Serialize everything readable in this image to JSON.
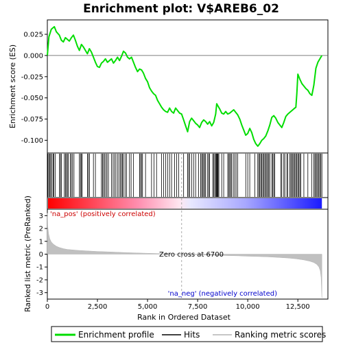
{
  "chart_data": {
    "type": "line",
    "title": "Enrichment plot: V$AREB6_02",
    "xlabel": "Rank in Ordered Dataset",
    "ylabel_top": "Enrichment score (ES)",
    "ylabel_bottom": "Ranked list metric (PreRanked)",
    "xlim": [
      0,
      14000
    ],
    "es_ylim": [
      -0.115,
      0.042
    ],
    "metric_ylim": [
      -3.5,
      3.5
    ],
    "x_ticks": [
      0,
      2500,
      5000,
      7500,
      10000,
      12500
    ],
    "x_tick_labels": [
      "0",
      "2,500",
      "5,000",
      "7,500",
      "10,000",
      "12,500"
    ],
    "es_ticks": [
      0.025,
      0.0,
      -0.025,
      -0.05,
      -0.075,
      -0.1
    ],
    "es_tick_labels": [
      "0.025",
      "0.000",
      "-0.025",
      "-0.050",
      "-0.075",
      "-0.100"
    ],
    "metric_ticks": [
      3,
      2,
      1,
      0,
      -1,
      -2,
      -3
    ],
    "metric_tick_labels": [
      "3",
      "2",
      "1",
      "0",
      "-1",
      "-2",
      "-3"
    ],
    "enrichment_profile": {
      "x": [
        0,
        80,
        200,
        350,
        450,
        600,
        700,
        800,
        900,
        1000,
        1100,
        1200,
        1300,
        1400,
        1500,
        1600,
        1700,
        1800,
        1900,
        2000,
        2100,
        2200,
        2300,
        2400,
        2500,
        2600,
        2700,
        2800,
        2900,
        3000,
        3100,
        3200,
        3300,
        3400,
        3500,
        3600,
        3700,
        3800,
        3900,
        4000,
        4100,
        4200,
        4300,
        4400,
        4500,
        4600,
        4700,
        4800,
        4900,
        5000,
        5100,
        5200,
        5300,
        5400,
        5500,
        5600,
        5700,
        5800,
        5900,
        6000,
        6100,
        6200,
        6300,
        6400,
        6500,
        6600,
        6700,
        6800,
        6900,
        7000,
        7100,
        7200,
        7300,
        7400,
        7500,
        7600,
        7700,
        7800,
        7900,
        8000,
        8100,
        8200,
        8300,
        8400,
        8450,
        8500,
        8600,
        8700,
        8800,
        8900,
        9000,
        9100,
        9200,
        9300,
        9400,
        9500,
        9600,
        9700,
        9800,
        9900,
        10000,
        10100,
        10200,
        10300,
        10400,
        10500,
        10600,
        10700,
        10800,
        10900,
        11000,
        11100,
        11200,
        11300,
        11400,
        11500,
        11600,
        11700,
        11800,
        11900,
        12000,
        12100,
        12200,
        12300,
        12400,
        12450,
        12500,
        12600,
        12700,
        12800,
        12900,
        13000,
        13100,
        13200,
        13300,
        13400,
        13500,
        13600,
        13700
      ],
      "y": [
        0.0,
        0.022,
        0.031,
        0.034,
        0.028,
        0.024,
        0.018,
        0.016,
        0.021,
        0.019,
        0.017,
        0.021,
        0.024,
        0.018,
        0.011,
        0.006,
        0.013,
        0.01,
        0.006,
        0.002,
        0.008,
        0.004,
        -0.002,
        -0.008,
        -0.013,
        -0.014,
        -0.009,
        -0.007,
        -0.004,
        -0.008,
        -0.006,
        -0.004,
        -0.009,
        -0.006,
        -0.002,
        -0.006,
        -0.001,
        0.005,
        0.003,
        -0.002,
        -0.004,
        -0.002,
        -0.008,
        -0.014,
        -0.019,
        -0.016,
        -0.017,
        -0.021,
        -0.027,
        -0.031,
        -0.038,
        -0.042,
        -0.045,
        -0.047,
        -0.053,
        -0.057,
        -0.061,
        -0.064,
        -0.066,
        -0.067,
        -0.062,
        -0.066,
        -0.068,
        -0.062,
        -0.065,
        -0.068,
        -0.069,
        -0.076,
        -0.083,
        -0.09,
        -0.078,
        -0.074,
        -0.077,
        -0.08,
        -0.082,
        -0.085,
        -0.079,
        -0.076,
        -0.078,
        -0.081,
        -0.078,
        -0.083,
        -0.079,
        -0.069,
        -0.057,
        -0.059,
        -0.063,
        -0.068,
        -0.069,
        -0.066,
        -0.069,
        -0.068,
        -0.066,
        -0.064,
        -0.067,
        -0.07,
        -0.075,
        -0.082,
        -0.088,
        -0.094,
        -0.092,
        -0.086,
        -0.091,
        -0.099,
        -0.104,
        -0.107,
        -0.104,
        -0.1,
        -0.098,
        -0.095,
        -0.089,
        -0.082,
        -0.073,
        -0.071,
        -0.074,
        -0.079,
        -0.082,
        -0.085,
        -0.079,
        -0.072,
        -0.069,
        -0.067,
        -0.065,
        -0.063,
        -0.061,
        -0.045,
        -0.022,
        -0.028,
        -0.033,
        -0.036,
        -0.039,
        -0.041,
        -0.045,
        -0.047,
        -0.035,
        -0.015,
        -0.008,
        -0.004,
        0.0
      ]
    },
    "hits": [
      30,
      80,
      130,
      170,
      230,
      290,
      330,
      400,
      610,
      650,
      700,
      850,
      900,
      950,
      1000,
      1050,
      1150,
      1200,
      1260,
      1330,
      1600,
      1650,
      1700,
      1740,
      2000,
      2050,
      2100,
      2300,
      2400,
      2700,
      2750,
      2800,
      2860,
      2920,
      2980,
      3050,
      3200,
      3280,
      3350,
      3420,
      3500,
      3580,
      3650,
      3700,
      3750,
      3800,
      3880,
      3950,
      4100,
      4180,
      4300,
      4600,
      4650,
      4700,
      4750,
      4900,
      5200,
      5320,
      5450,
      5700,
      5800,
      5900,
      6000,
      6100,
      6200,
      6350,
      6450,
      6550,
      6800,
      7000,
      7050,
      7100,
      7200,
      7300,
      7400,
      7550,
      7650,
      7700,
      7750,
      7800,
      7850,
      7900,
      8000,
      8050,
      8100,
      8250,
      8300,
      8350,
      8400,
      8430,
      8460,
      8490,
      8520,
      8560,
      8700,
      8800,
      9000,
      9050,
      9100,
      9150,
      9200,
      9280,
      9350,
      9420,
      9500,
      9900,
      10000,
      10100,
      10350,
      10500,
      10550,
      10600,
      10650,
      10700,
      10750,
      10800,
      10850,
      10900,
      10950,
      11000,
      11050,
      11100,
      11200,
      11250,
      11300,
      11350,
      11650,
      11700,
      11800,
      11850,
      11950,
      12000,
      12100,
      12150,
      12200,
      12250,
      12300,
      12350,
      12400,
      12450,
      12500,
      12550,
      12600,
      12650,
      12800,
      13000,
      13200,
      13300,
      13350,
      13400,
      13450,
      13500,
      13550,
      13600,
      13650,
      13700
    ],
    "metric_control": {
      "rank": [
        0,
        20,
        60,
        120,
        200,
        300,
        450,
        600,
        800,
        1000,
        1500,
        2000,
        2500,
        3000,
        3500,
        4000,
        4500,
        5000,
        5500,
        6000,
        6700,
        7500,
        8000,
        8500,
        9000,
        9500,
        10000,
        10500,
        11000,
        11500,
        12000,
        12400,
        12800,
        13100,
        13300,
        13450,
        13550,
        13620,
        13660,
        13700
      ],
      "value": [
        3.2,
        2.2,
        1.6,
        1.2,
        0.95,
        0.78,
        0.62,
        0.52,
        0.43,
        0.37,
        0.3,
        0.25,
        0.21,
        0.18,
        0.15,
        0.12,
        0.09,
        0.07,
        0.05,
        0.03,
        0.0,
        -0.04,
        -0.07,
        -0.09,
        -0.11,
        -0.13,
        -0.16,
        -0.18,
        -0.21,
        -0.25,
        -0.3,
        -0.36,
        -0.45,
        -0.55,
        -0.65,
        -0.8,
        -1.0,
        -1.3,
        -1.8,
        -3.4
      ]
    },
    "zero_cross": 6700,
    "zero_cross_label": "Zero cross at 6700",
    "pos_label": "'na_pos' (positively correlated)",
    "neg_label": "'na_neg' (negatively correlated)",
    "legend": {
      "placement": "bottom",
      "items": [
        {
          "label": "Enrichment profile",
          "color": "#00dd00"
        },
        {
          "label": "Hits",
          "color": "#000000"
        },
        {
          "label": "Ranking metric scores",
          "color": "#b4b4b4"
        }
      ]
    },
    "colors": {
      "profile": "#00dd00",
      "metric_fill": "#c0c0c0",
      "pos_text": "#cc0000",
      "neg_text": "#0000cc",
      "zero_line": "#aaaaaa"
    }
  }
}
